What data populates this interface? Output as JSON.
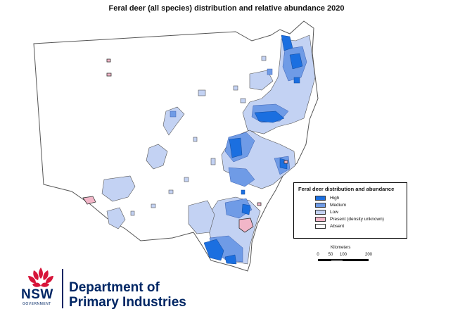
{
  "title": "Feral deer (all species) distribution and relative abundance 2020",
  "legend": {
    "title": "Feral deer distribution and abundance",
    "items": [
      {
        "label": "High",
        "color": "#1b6fe0"
      },
      {
        "label": "Medium",
        "color": "#6f9be6"
      },
      {
        "label": "Low",
        "color": "#c3d2f3"
      },
      {
        "label": "Present (density unknown)",
        "color": "#f2b6c8"
      },
      {
        "label": "Absent",
        "color": "#ffffff"
      }
    ]
  },
  "scale": {
    "title": "Kilometers",
    "ticks": [
      "0",
      "50",
      "100",
      "200"
    ]
  },
  "logo": {
    "nsw": "NSW",
    "government": "GOVERNMENT",
    "dept_line1": "Department of",
    "dept_line2": "Primary Industries"
  },
  "colors": {
    "high": "#1b6fe0",
    "medium": "#6f9be6",
    "low": "#c3d2f3",
    "present": "#f2b6c8",
    "outline": "#555555",
    "brand_navy": "#002664",
    "brand_red": "#d7153a"
  }
}
